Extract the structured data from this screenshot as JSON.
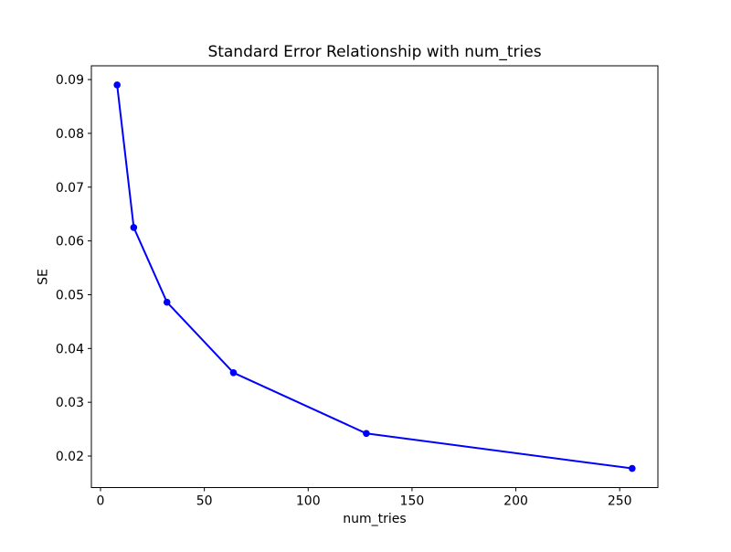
{
  "window": {
    "background": "#ffffff"
  },
  "chart_data": {
    "type": "line",
    "title": "Standard Error Relationship with num_tries",
    "xlabel": "num_tries",
    "ylabel": "SE",
    "x": [
      8,
      16,
      32,
      64,
      128,
      256
    ],
    "y": [
      0.089,
      0.0625,
      0.0486,
      0.0355,
      0.0242,
      0.0177
    ],
    "series": [
      {
        "name": "SE",
        "x": [
          8,
          16,
          32,
          64,
          128,
          256
        ],
        "y": [
          0.089,
          0.0625,
          0.0486,
          0.0355,
          0.0242,
          0.0177
        ]
      }
    ],
    "xticks": [
      0,
      50,
      100,
      150,
      200,
      250
    ],
    "xtick_labels": [
      "0",
      "50",
      "100",
      "150",
      "200",
      "250"
    ],
    "yticks": [
      0.02,
      0.03,
      0.04,
      0.05,
      0.06,
      0.07,
      0.08,
      0.09
    ],
    "ytick_labels": [
      "0.02",
      "0.03",
      "0.04",
      "0.05",
      "0.06",
      "0.07",
      "0.08",
      "0.09"
    ],
    "xlim": [
      -4.4,
      268.4
    ],
    "ylim": [
      0.01414,
      0.09256
    ],
    "grid": false,
    "legend_position": "none",
    "line_color": "#0000ff",
    "marker": "circle",
    "marker_color": "#0000ff",
    "axes_color": "#000000",
    "text_color": "#000000"
  }
}
